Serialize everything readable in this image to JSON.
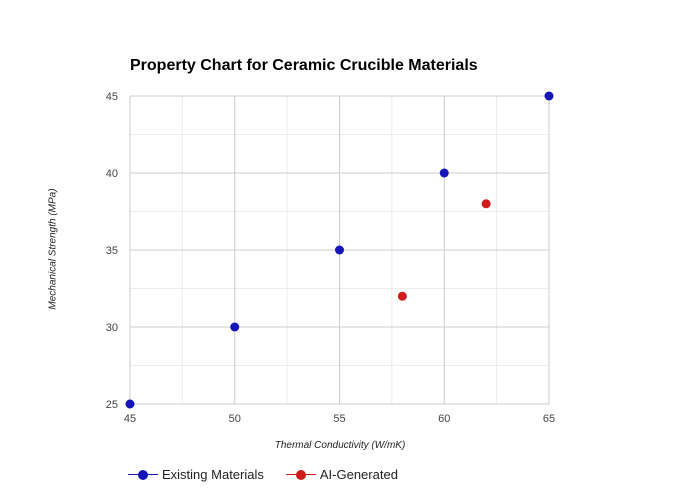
{
  "chart_data": {
    "type": "scatter",
    "title": "Property Chart for Ceramic Crucible Materials",
    "xlabel": "Thermal Conductivity (W/mK)",
    "ylabel": "Mechanical Strength (MPa)",
    "xlim": [
      45,
      65
    ],
    "ylim": [
      25,
      45
    ],
    "xticks": [
      45,
      50,
      55,
      60,
      65
    ],
    "yticks": [
      25,
      30,
      35,
      40,
      45
    ],
    "grid": true,
    "legend_position": "bottom-left",
    "series": [
      {
        "name": "Existing Materials",
        "color": "#1414b8",
        "points": [
          {
            "x": 45,
            "y": 25
          },
          {
            "x": 50,
            "y": 30
          },
          {
            "x": 55,
            "y": 35
          },
          {
            "x": 60,
            "y": 40
          },
          {
            "x": 65,
            "y": 45
          }
        ]
      },
      {
        "name": "AI-Generated",
        "color": "#d01c1c",
        "points": [
          {
            "x": 58,
            "y": 32
          },
          {
            "x": 62,
            "y": 38
          }
        ]
      }
    ]
  }
}
